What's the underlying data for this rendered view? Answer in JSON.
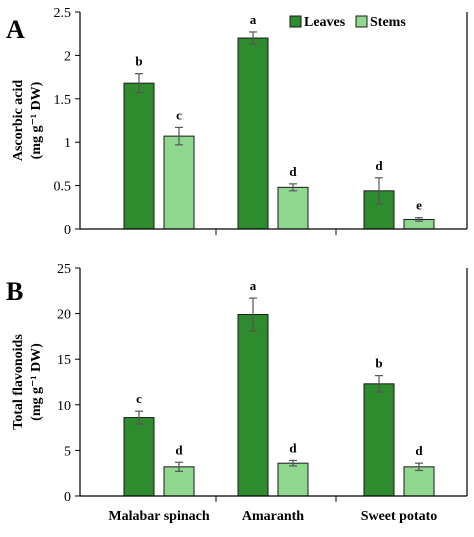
{
  "chart_data": [
    {
      "type": "bar",
      "panel": "A",
      "categories": [
        "Malabar spinach",
        "Amaranth",
        "Sweet potato"
      ],
      "ylabel_line1": "Ascorbic acid",
      "ylabel_line2": "(mg g⁻¹ DW)",
      "ylim": [
        0,
        2.5
      ],
      "yticks": [
        0,
        0.5,
        1,
        1.5,
        2,
        2.5
      ],
      "ytick_labels": [
        "0",
        "0.5",
        "1",
        "1.5",
        "2",
        "2.5"
      ],
      "grid": false,
      "legend": "top-right",
      "series": [
        {
          "name": "Leaves",
          "color": "#2e8b2e",
          "values": [
            1.68,
            2.2,
            0.44
          ],
          "errors": [
            0.11,
            0.07,
            0.15
          ],
          "letters": [
            "b",
            "a",
            "d"
          ]
        },
        {
          "name": "Stems",
          "color": "#90d890",
          "values": [
            1.07,
            0.48,
            0.11
          ],
          "errors": [
            0.1,
            0.04,
            0.02
          ],
          "letters": [
            "c",
            "d",
            "e"
          ]
        }
      ]
    },
    {
      "type": "bar",
      "panel": "B",
      "categories": [
        "Malabar spinach",
        "Amaranth",
        "Sweet potato"
      ],
      "ylabel_line1": "Total flavonoids",
      "ylabel_line2": "(mg g⁻¹ DW)",
      "ylim": [
        0,
        25
      ],
      "yticks": [
        0,
        5,
        10,
        15,
        20,
        25
      ],
      "ytick_labels": [
        "0",
        "5",
        "10",
        "15",
        "20",
        "25"
      ],
      "grid": false,
      "series": [
        {
          "name": "Leaves",
          "color": "#2e8b2e",
          "values": [
            8.6,
            19.9,
            12.3
          ],
          "errors": [
            0.7,
            1.8,
            0.9
          ],
          "letters": [
            "c",
            "a",
            "b"
          ]
        },
        {
          "name": "Stems",
          "color": "#90d890",
          "values": [
            3.2,
            3.6,
            3.2
          ],
          "errors": [
            0.5,
            0.3,
            0.4
          ],
          "letters": [
            "d",
            "d",
            "d"
          ]
        }
      ]
    }
  ]
}
